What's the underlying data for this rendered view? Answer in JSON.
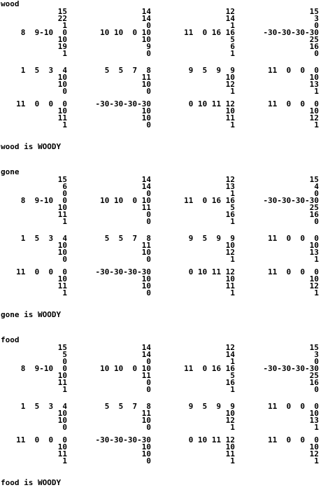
{
  "sections": [
    {
      "title": "wood",
      "result": "wood is WOODY",
      "blocks": [
        [
          {
            "side": [
              "15",
              "22",
              "1"
            ],
            "row": "8  9-10  0",
            "below": [
              "10",
              "19",
              "1"
            ]
          },
          {
            "side": [
              "14",
              "14",
              "0"
            ],
            "row": "10 10  0 10",
            "below": [
              "10",
              "9",
              "0"
            ]
          },
          {
            "side": [
              "12",
              "14",
              "1"
            ],
            "row": "11  0 16 16",
            "below": [
              "5",
              "6",
              "1"
            ]
          },
          {
            "side": [
              "15",
              "3",
              "0"
            ],
            "row": "-30-30-30-30",
            "below": [
              "25",
              "16",
              "0"
            ]
          }
        ],
        [
          {
            "row": "1  5  3  4",
            "below": [
              "10",
              "10",
              "0"
            ]
          },
          {
            "row": "5  5  7  8",
            "below": [
              "11",
              "10",
              "0"
            ]
          },
          {
            "row": "9  5  9  9",
            "below": [
              "10",
              "12",
              "1"
            ]
          },
          {
            "row": "11  0  0  0",
            "below": [
              "10",
              "13",
              "1"
            ]
          }
        ],
        [
          {
            "row": "11  0  0  0",
            "below": [
              "10",
              "11",
              "1"
            ]
          },
          {
            "row": "-30-30-30-30",
            "below": [
              "10",
              "10",
              "0"
            ]
          },
          {
            "row": "0 10 11 12",
            "below": [
              "10",
              "11",
              "1"
            ]
          },
          {
            "row": "11  0  0  0",
            "below": [
              "10",
              "12",
              "1"
            ]
          }
        ]
      ]
    },
    {
      "title": "gone",
      "result": "gone is WOODY",
      "blocks": [
        [
          {
            "side": [
              "15",
              "6",
              "0"
            ],
            "row": "8  9-10  0",
            "below": [
              "10",
              "11",
              "1"
            ]
          },
          {
            "side": [
              "14",
              "14",
              "0"
            ],
            "row": "10 10  0 10",
            "below": [
              "11",
              "0",
              "0"
            ]
          },
          {
            "side": [
              "12",
              "13",
              "1"
            ],
            "row": "11  0 16 16",
            "below": [
              "5",
              "16",
              "1"
            ]
          },
          {
            "side": [
              "15",
              "4",
              "0"
            ],
            "row": "-30-30-30-30",
            "below": [
              "25",
              "16",
              "0"
            ]
          }
        ],
        [
          {
            "row": "1  5  3  4",
            "below": [
              "10",
              "10",
              "0"
            ]
          },
          {
            "row": "5  5  7  8",
            "below": [
              "11",
              "10",
              "0"
            ]
          },
          {
            "row": "9  5  9  9",
            "below": [
              "10",
              "12",
              "1"
            ]
          },
          {
            "row": "11  0  0  0",
            "below": [
              "10",
              "13",
              "1"
            ]
          }
        ],
        [
          {
            "row": "11  0  0  0",
            "below": [
              "10",
              "11",
              "1"
            ]
          },
          {
            "row": "-30-30-30-30",
            "below": [
              "10",
              "10",
              "0"
            ]
          },
          {
            "row": "0 10 11 12",
            "below": [
              "10",
              "11",
              "1"
            ]
          },
          {
            "row": "11  0  0  0",
            "below": [
              "10",
              "12",
              "1"
            ]
          }
        ]
      ]
    },
    {
      "title": "food",
      "result": "food is WOODY",
      "blocks": [
        [
          {
            "side": [
              "15",
              "5",
              "0"
            ],
            "row": "8  9-10  0",
            "below": [
              "10",
              "11",
              "1"
            ]
          },
          {
            "side": [
              "14",
              "14",
              "0"
            ],
            "row": "10 10  0 10",
            "below": [
              "11",
              "0",
              "0"
            ]
          },
          {
            "side": [
              "12",
              "14",
              "1"
            ],
            "row": "11  0 16 16",
            "below": [
              "5",
              "16",
              "1"
            ]
          },
          {
            "side": [
              "15",
              "3",
              "0"
            ],
            "row": "-30-30-30-30",
            "below": [
              "25",
              "16",
              "0"
            ]
          }
        ],
        [
          {
            "row": "1  5  3  4",
            "below": [
              "10",
              "10",
              "0"
            ]
          },
          {
            "row": "5  5  7  8",
            "below": [
              "11",
              "10",
              "0"
            ]
          },
          {
            "row": "9  5  9  9",
            "below": [
              "10",
              "12",
              "1"
            ]
          },
          {
            "row": "11  0  0  0",
            "below": [
              "10",
              "13",
              "1"
            ]
          }
        ],
        [
          {
            "row": "11  0  0  0",
            "below": [
              "10",
              "11",
              "1"
            ]
          },
          {
            "row": "-30-30-30-30",
            "below": [
              "10",
              "10",
              "0"
            ]
          },
          {
            "row": "0 10 11 12",
            "below": [
              "10",
              "11",
              "1"
            ]
          },
          {
            "row": "11  0  0  0",
            "below": [
              "10",
              "12",
              "1"
            ]
          }
        ]
      ]
    }
  ]
}
